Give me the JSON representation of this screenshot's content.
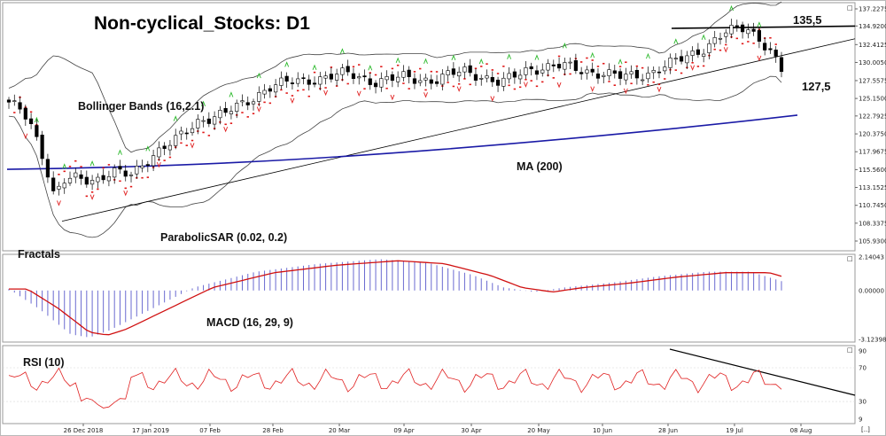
{
  "title": "Non-cyclical_Stocks: D1",
  "annotations": {
    "bollinger": "Bollinger Bands (16,2.1)",
    "parabolic": "ParabolicSAR (0.02, 0.2)",
    "fractals": "Fractals",
    "ma": "MA (200)",
    "macd": "MACD (16, 29, 9)",
    "rsi": "RSI (10)",
    "level_high": "135,5",
    "level_low": "127,5"
  },
  "colors": {
    "ma": "#1a1aa6",
    "sar": "#e01818",
    "macd_signal": "#d01010",
    "macd_hist": "#6a6ad0",
    "rsi": "#e02020",
    "fractal_up": "#29b829",
    "fractal_down": "#e02020",
    "band": "#444444",
    "trend": "#000000"
  },
  "chart_data": [
    {
      "type": "candlestick",
      "panel": "price",
      "y_ticks": [
        "137.2275",
        "134.9200",
        "132.4125",
        "130.0050",
        "127.5575",
        "125.1500",
        "122.7925",
        "120.3750",
        "117.9675",
        "115.5600",
        "113.1525",
        "110.7450",
        "108.3375",
        "105.9300"
      ],
      "ylim": [
        105.93,
        137.2275
      ],
      "x_ticks": [
        "26 Dec 2018",
        "17 Jan 2019",
        "07 Feb",
        "28 Feb",
        "20 Mar",
        "09 Apr",
        "30 Apr",
        "20 May",
        "10 Jun",
        "28 Jun",
        "19 Jul",
        "08 Aug"
      ],
      "levels": [
        135.5,
        127.5
      ],
      "series": [
        {
          "name": "Bollinger Bands (16,2.1)",
          "kind": "band"
        },
        {
          "name": "ParabolicSAR (0.02, 0.2)",
          "kind": "sar"
        },
        {
          "name": "MA (200)",
          "kind": "line"
        },
        {
          "name": "Fractals",
          "kind": "markers"
        }
      ]
    },
    {
      "type": "bar",
      "panel": "macd",
      "name": "MACD (16, 29, 9)",
      "y_ticks": [
        "2.14043",
        "0.00000",
        "-3.12398"
      ],
      "ylim": [
        -3.12398,
        2.14043
      ]
    },
    {
      "type": "line",
      "panel": "rsi",
      "name": "RSI (10)",
      "y_ticks": [
        "90",
        "70",
        "30",
        "9"
      ],
      "ylim": [
        9,
        90
      ]
    }
  ],
  "corner_marks": {
    "price": "□",
    "macd": "□",
    "rsi": "□",
    "bottom": "[..]"
  }
}
